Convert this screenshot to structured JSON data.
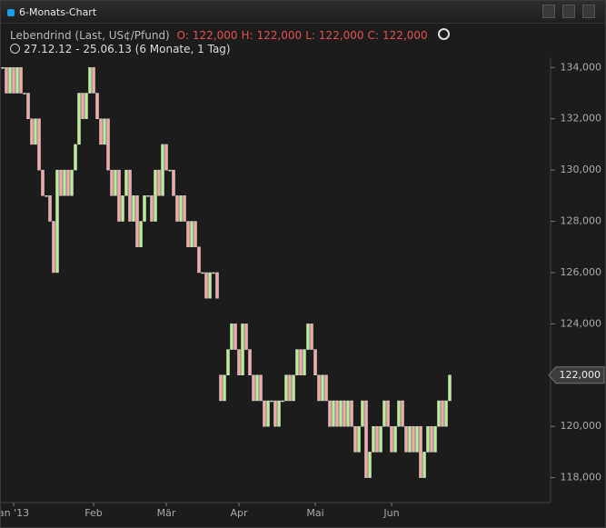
{
  "chart_data": {
    "type": "candlestick",
    "title": "6-Monats-Chart",
    "subtitle": "Lebendrind (Last, US¢/Pfund)",
    "quote": [
      {
        "key": "O:",
        "text": "122,000"
      },
      {
        "key": "H:",
        "text": "122,000"
      },
      {
        "key": "L:",
        "text": "122,000"
      },
      {
        "key": "C:",
        "text": "122,000"
      }
    ],
    "period": "27.12.12 - 25.06.13 (6 Monate, 1 Tag)",
    "up_color": "#b8f08e",
    "down_color": "#f5a6a6",
    "open": [
      134000,
      134000,
      133000,
      134000,
      133000,
      134000,
      133000,
      133000,
      132000,
      131000,
      132000,
      130000,
      129000,
      129000,
      128000,
      126000,
      130000,
      129000,
      130000,
      129000,
      130000,
      131000,
      133000,
      132000,
      133000,
      134000,
      133000,
      132000,
      131000,
      132000,
      130000,
      129000,
      130000,
      128000,
      129000,
      130000,
      128000,
      129000,
      127000,
      128000,
      129000,
      129000,
      128000,
      130000,
      129000,
      131000,
      130000,
      130000,
      129000,
      128000,
      129000,
      128000,
      127000,
      128000,
      127000,
      126000,
      126000,
      125000,
      126000,
      126000,
      122000,
      121000,
      122000,
      123000,
      124000,
      123000,
      122000,
      124000,
      123000,
      122000,
      121000,
      122000,
      121000,
      120000,
      121000,
      121000,
      120000,
      121000,
      121000,
      122000,
      121000,
      122000,
      123000,
      122000,
      123000,
      124000,
      123000,
      122000,
      121000,
      122000,
      121000,
      120000,
      121000,
      120000,
      121000,
      120000,
      121000,
      120000,
      119000,
      120000,
      121000,
      118000,
      119000,
      120000,
      119000,
      120000,
      121000,
      120000,
      119000,
      120000,
      121000,
      120000,
      119000,
      120000,
      119000,
      120000,
      118000,
      119000,
      120000,
      119000,
      120000,
      121000,
      120000,
      121000
    ],
    "close": [
      134000,
      133000,
      134000,
      133000,
      134000,
      133000,
      133000,
      132000,
      131000,
      132000,
      130000,
      129000,
      129000,
      128000,
      126000,
      130000,
      129000,
      130000,
      129000,
      130000,
      131000,
      133000,
      132000,
      133000,
      134000,
      133000,
      132000,
      131000,
      132000,
      130000,
      129000,
      130000,
      128000,
      129000,
      130000,
      128000,
      129000,
      127000,
      128000,
      129000,
      129000,
      128000,
      130000,
      129000,
      131000,
      130000,
      130000,
      129000,
      128000,
      129000,
      128000,
      127000,
      128000,
      127000,
      126000,
      126000,
      125000,
      126000,
      126000,
      125000,
      121000,
      122000,
      123000,
      124000,
      123000,
      122000,
      124000,
      123000,
      122000,
      121000,
      122000,
      121000,
      120000,
      121000,
      121000,
      120000,
      121000,
      121000,
      122000,
      121000,
      122000,
      123000,
      122000,
      123000,
      124000,
      123000,
      122000,
      121000,
      122000,
      121000,
      120000,
      121000,
      120000,
      121000,
      120000,
      121000,
      120000,
      119000,
      120000,
      121000,
      118000,
      119000,
      120000,
      119000,
      120000,
      121000,
      120000,
      119000,
      120000,
      121000,
      120000,
      119000,
      120000,
      119000,
      120000,
      118000,
      119000,
      120000,
      119000,
      120000,
      121000,
      120000,
      121000,
      122000
    ],
    "xlim": [
      -0.5,
      149.5
    ],
    "xticks": [
      {
        "value": 3,
        "label": "an '13"
      },
      {
        "value": 25,
        "label": "Feb"
      },
      {
        "value": 45,
        "label": "Mär"
      },
      {
        "value": 65,
        "label": "Apr"
      },
      {
        "value": 86,
        "label": "Mai"
      },
      {
        "value": 107,
        "label": "Jun"
      }
    ],
    "ylim": [
      117100,
      134400
    ],
    "yticks": [
      {
        "value": 118000,
        "label": "118,000"
      },
      {
        "value": 120000,
        "label": "120,000"
      },
      {
        "value": 122000,
        "label": "122,000"
      },
      {
        "value": 124000,
        "label": "124,000"
      },
      {
        "value": 126000,
        "label": "126,000"
      },
      {
        "value": 128000,
        "label": "128,000"
      },
      {
        "value": 130000,
        "label": "130,000"
      },
      {
        "value": 132000,
        "label": "132,000"
      },
      {
        "value": 134000,
        "label": "134,000"
      }
    ],
    "last": {
      "value": 122000,
      "label": "122,000"
    }
  }
}
